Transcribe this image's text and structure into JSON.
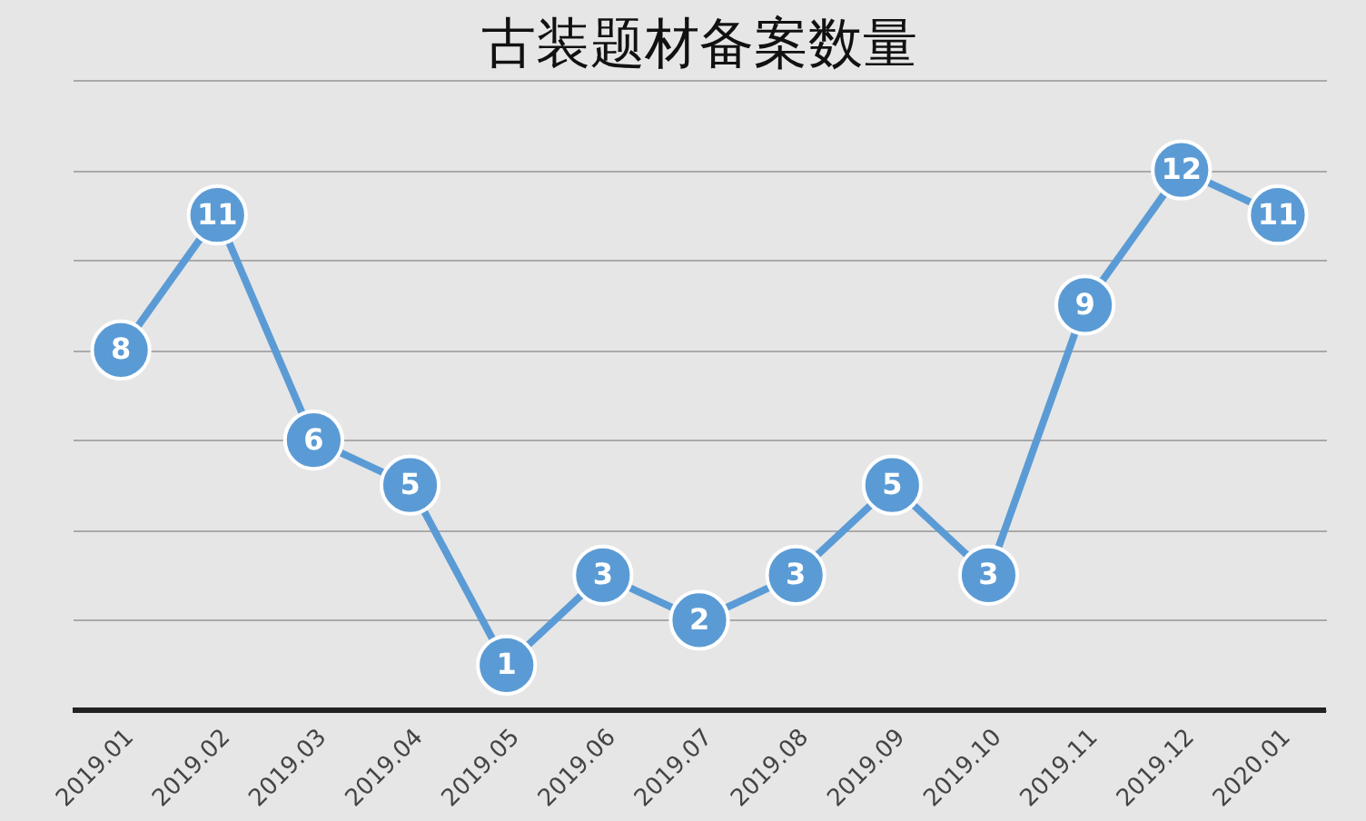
{
  "chart_data": {
    "type": "line",
    "title": "古装题材备案数量",
    "categories": [
      "2019.01",
      "2019.02",
      "2019.03",
      "2019.04",
      "2019.05",
      "2019.06",
      "2019.07",
      "2019.08",
      "2019.09",
      "2019.10",
      "2019.11",
      "2019.12",
      "2020.01"
    ],
    "series": [
      {
        "color": "#5b9bd5",
        "values": [
          8,
          11,
          6,
          5,
          1,
          3,
          2,
          3,
          5,
          3,
          9,
          12,
          11
        ]
      }
    ],
    "ylim": [
      0,
      14
    ],
    "yticks": [
      {
        "value": 0,
        "label": null
      },
      {
        "value": 2,
        "label": null
      },
      {
        "value": 4,
        "label": null
      },
      {
        "value": 6,
        "label": null
      },
      {
        "value": 8,
        "label": null
      },
      {
        "value": 10,
        "label": null
      },
      {
        "value": 12,
        "label": null
      },
      {
        "value": 14,
        "label": null
      }
    ],
    "grid": "y",
    "tick_labels": "x",
    "marker": "circle",
    "line_style": "solid",
    "data_labels": true
  }
}
